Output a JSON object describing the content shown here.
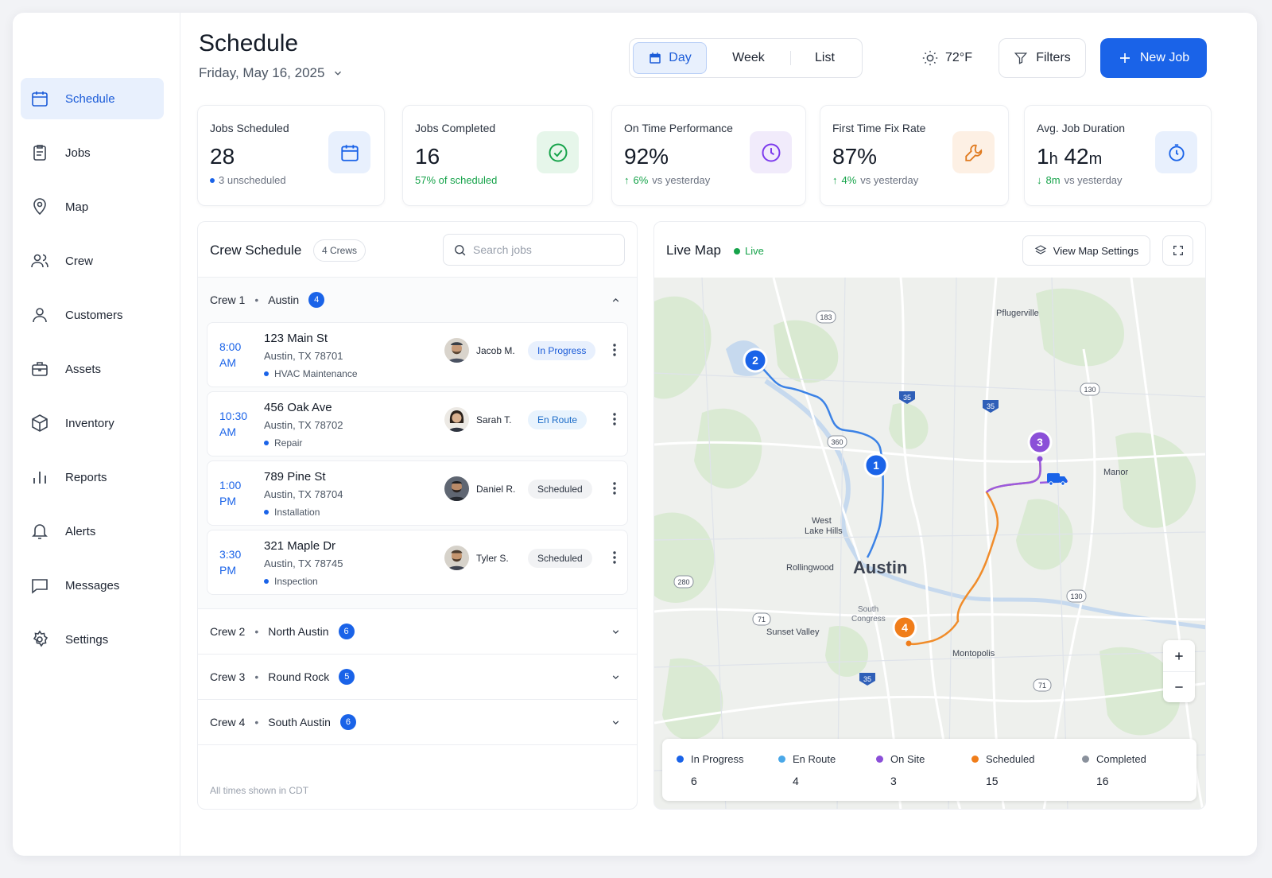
{
  "colors": {
    "primary": "#1a63e8",
    "in_progress": "#1a63e8",
    "en_route": "#4aa8e8",
    "on_site": "#8b4fd8",
    "scheduled": "#f07d1a",
    "completed": "#8a919c",
    "success": "#16a34a"
  },
  "sidebar": {
    "items": [
      {
        "label": "Schedule",
        "icon": "calendar-icon",
        "active": true
      },
      {
        "label": "Jobs",
        "icon": "clipboard-icon"
      },
      {
        "label": "Map",
        "icon": "map-pin-icon"
      },
      {
        "label": "Crew",
        "icon": "users-icon"
      },
      {
        "label": "Customers",
        "icon": "user-icon"
      },
      {
        "label": "Assets",
        "icon": "briefcase-icon"
      },
      {
        "label": "Inventory",
        "icon": "box-icon"
      },
      {
        "label": "Reports",
        "icon": "bar-chart-icon"
      },
      {
        "label": "Alerts",
        "icon": "bell-icon"
      },
      {
        "label": "Messages",
        "icon": "message-icon"
      },
      {
        "label": "Settings",
        "icon": "gear-icon"
      }
    ]
  },
  "header": {
    "title": "Schedule",
    "date": "Friday, May 16, 2025",
    "views": [
      "Day",
      "Week",
      "List"
    ],
    "active_view": "Day",
    "weather": "72°F",
    "filters_label": "Filters",
    "new_job_label": "New Job"
  },
  "stats": [
    {
      "label": "Jobs Scheduled",
      "value": "28",
      "sub": "3 unscheduled",
      "icon": "calendar-icon"
    },
    {
      "label": "Jobs Completed",
      "value": "16",
      "sub": "57% of scheduled",
      "icon": "check-circle-icon"
    },
    {
      "label": "On Time Performance",
      "value": "92%",
      "delta": "6%",
      "delta_suffix": "vs yesterday",
      "icon": "clock-icon"
    },
    {
      "label": "First Time Fix Rate",
      "value": "87%",
      "delta": "4%",
      "delta_suffix": "vs yesterday",
      "icon": "wrench-icon"
    },
    {
      "label": "Avg. Job Duration",
      "value_h": "1",
      "unit_h": "h",
      "value_m": "42",
      "unit_m": "m",
      "delta": "8m",
      "delta_suffix": "vs yesterday",
      "icon": "stopwatch-icon"
    }
  ],
  "crew_schedule": {
    "title": "Crew Schedule",
    "count_label": "4 Crews",
    "search_placeholder": "Search jobs",
    "footer_note": "All times shown in CDT",
    "crews": [
      {
        "name": "Crew 1",
        "area": "Austin",
        "count": "4",
        "expanded": true
      },
      {
        "name": "Crew 2",
        "area": "North Austin",
        "count": "6"
      },
      {
        "name": "Crew 3",
        "area": "Round Rock",
        "count": "5"
      },
      {
        "name": "Crew 4",
        "area": "South Austin",
        "count": "6"
      }
    ],
    "jobs": [
      {
        "time": "8:00",
        "period": "AM",
        "address": "123 Main St",
        "city": "Austin, TX 78701",
        "type": "HVAC Maintenance",
        "tech": "Jacob M.",
        "status": "In Progress"
      },
      {
        "time": "10:30",
        "period": "AM",
        "address": "456 Oak Ave",
        "city": "Austin, TX 78702",
        "type": "Repair",
        "tech": "Sarah T.",
        "status": "En Route"
      },
      {
        "time": "1:00",
        "period": "PM",
        "address": "789 Pine St",
        "city": "Austin, TX 78704",
        "type": "Installation",
        "tech": "Daniel R.",
        "status": "Scheduled"
      },
      {
        "time": "3:30",
        "period": "PM",
        "address": "321 Maple Dr",
        "city": "Austin, TX 78745",
        "type": "Inspection",
        "tech": "Tyler S.",
        "status": "Scheduled"
      }
    ]
  },
  "live_map": {
    "title": "Live Map",
    "live_label": "Live",
    "settings_label": "View Map Settings",
    "city": "Austin",
    "places": [
      "Pflugerville",
      "Manor",
      "West",
      "Lake Hills",
      "Rollingwood",
      "South",
      "Congress",
      "Sunset Valley",
      "Montopolis"
    ],
    "highways": [
      "183",
      "35",
      "35",
      "130",
      "360",
      "280",
      "71",
      "130",
      "35",
      "71"
    ],
    "markers": [
      "1",
      "2",
      "3",
      "4"
    ],
    "legend": [
      {
        "label": "In Progress",
        "count": "6"
      },
      {
        "label": "En Route",
        "count": "4"
      },
      {
        "label": "On Site",
        "count": "3"
      },
      {
        "label": "Scheduled",
        "count": "15"
      },
      {
        "label": "Completed",
        "count": "16"
      }
    ]
  }
}
